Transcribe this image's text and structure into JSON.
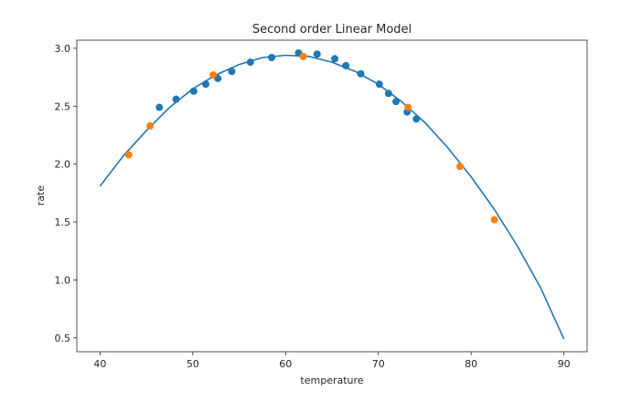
{
  "chart_data": {
    "type": "scatter",
    "title": "Second order Linear Model",
    "xlabel": "temperature",
    "ylabel": "rate",
    "xlim": [
      37.5,
      92.5
    ],
    "ylim": [
      0.38,
      3.07
    ],
    "xticks": [
      40,
      50,
      60,
      70,
      80,
      90
    ],
    "yticks": [
      0.5,
      1.0,
      1.5,
      2.0,
      2.5,
      3.0
    ],
    "xtick_labels": [
      "40",
      "50",
      "60",
      "70",
      "80",
      "90"
    ],
    "ytick_labels": [
      "0.5",
      "1.0",
      "1.5",
      "2.0",
      "2.5",
      "3.0"
    ],
    "grid": false,
    "colors": {
      "fit": "#1f77b4",
      "blue_points": "#1f77b4",
      "orange_points": "#ff7f0e"
    },
    "fit_curve": {
      "x": [
        40,
        42.5,
        45,
        47.5,
        50,
        52.5,
        55,
        57.5,
        60,
        62.5,
        65,
        67.5,
        70,
        72.5,
        75,
        77.5,
        80,
        82.5,
        85,
        87.5,
        90
      ],
      "y": [
        1.81,
        2.07,
        2.29,
        2.49,
        2.65,
        2.77,
        2.86,
        2.92,
        2.94,
        2.93,
        2.88,
        2.8,
        2.69,
        2.54,
        2.36,
        2.14,
        1.89,
        1.61,
        1.29,
        0.93,
        0.49
      ]
    },
    "series": [
      {
        "x": [
          46.4,
          48.2,
          50.1,
          51.4,
          52.7,
          54.2,
          56.2,
          58.5,
          61.4,
          63.4,
          65.3,
          66.5,
          68.1,
          70.1,
          71.1,
          71.9,
          73.1,
          74.1
        ],
        "y": [
          2.49,
          2.56,
          2.63,
          2.69,
          2.74,
          2.8,
          2.88,
          2.92,
          2.96,
          2.95,
          2.91,
          2.85,
          2.78,
          2.69,
          2.61,
          2.54,
          2.45,
          2.39
        ]
      },
      {
        "x": [
          43.1,
          45.4,
          52.2,
          61.9,
          73.2,
          78.8,
          82.5
        ],
        "y": [
          2.08,
          2.33,
          2.77,
          2.93,
          2.49,
          1.98,
          1.52
        ]
      }
    ]
  }
}
